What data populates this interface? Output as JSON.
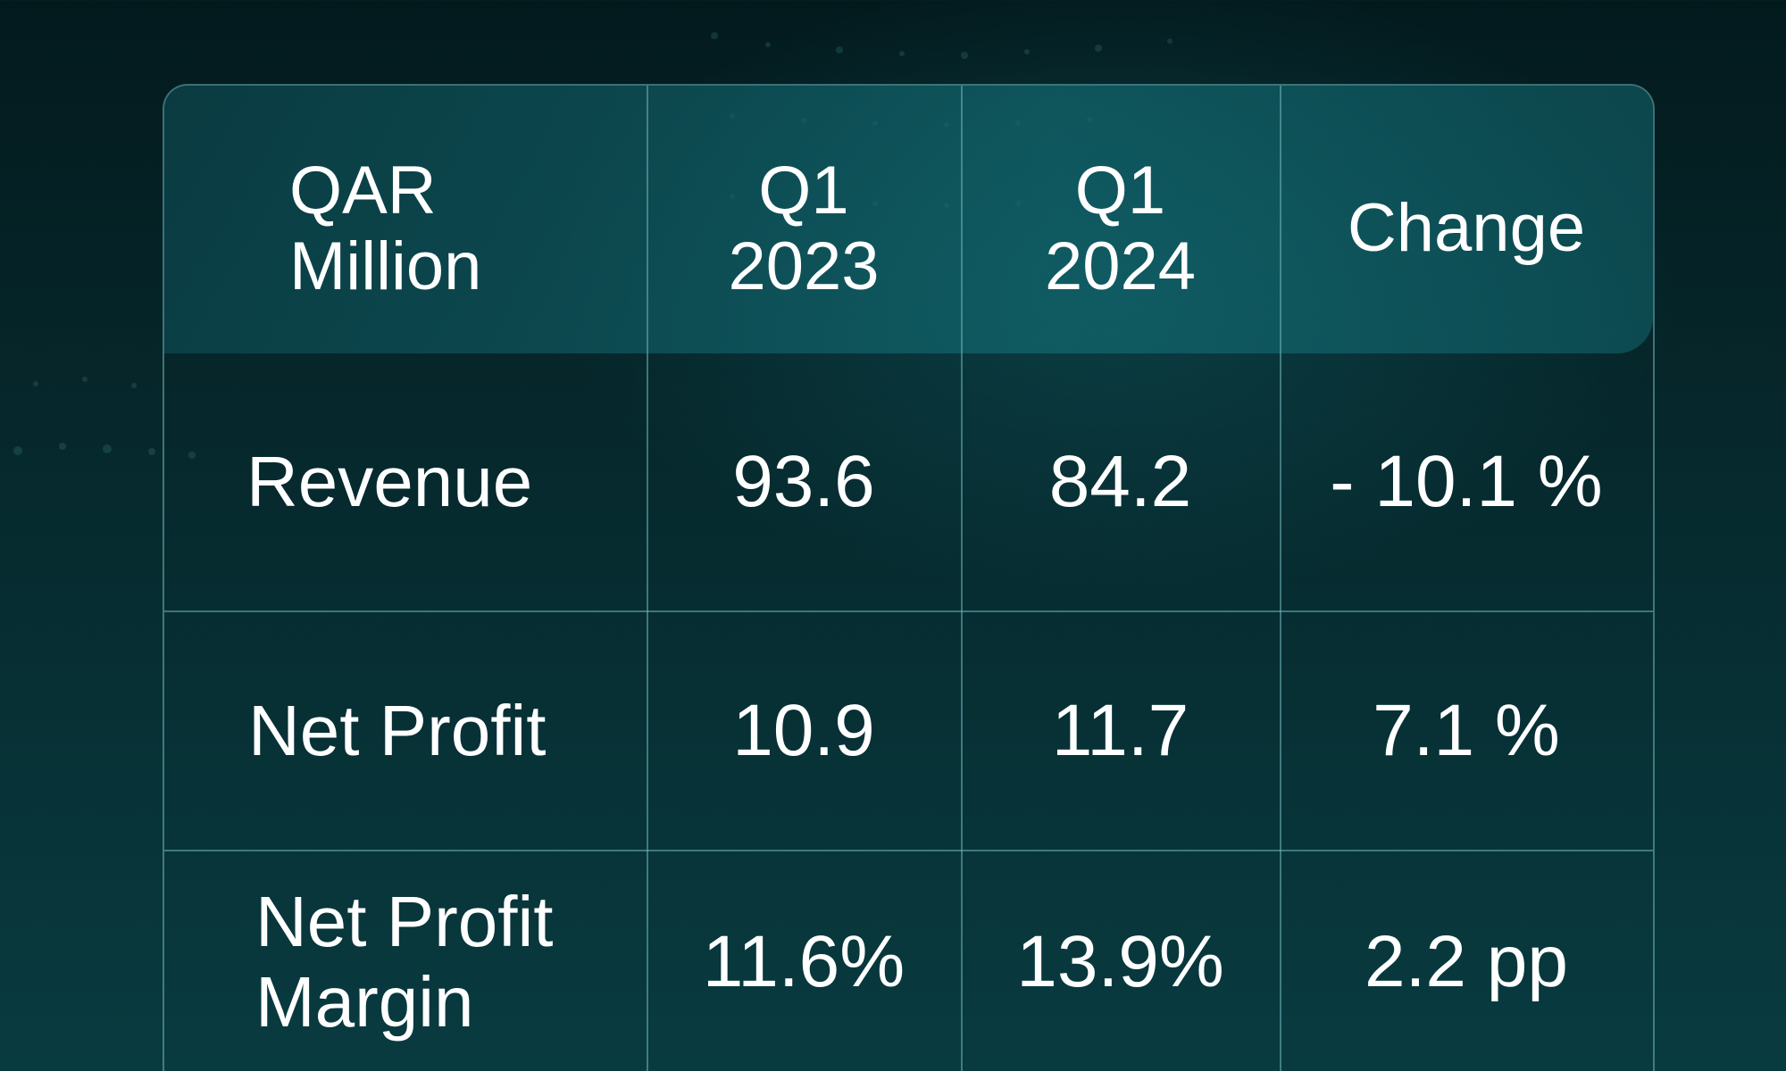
{
  "table": {
    "headers": {
      "unit_line1": "QAR",
      "unit_line2": "Million",
      "col1_line1": "Q1",
      "col1_line2": "2023",
      "col2_line1": "Q1",
      "col2_line2": "2024",
      "change": "Change"
    },
    "rows": [
      {
        "label_line1": "Revenue",
        "label_line2": "",
        "q1_2023": "93.6",
        "q1_2024": "84.2",
        "change": "- 10.1 %"
      },
      {
        "label_line1": "Net Profit",
        "label_line2": "",
        "q1_2023": "10.9",
        "q1_2024": "11.7",
        "change": "7.1 %"
      },
      {
        "label_line1": "Net Profit",
        "label_line2": "Margin",
        "q1_2023": "11.6%",
        "q1_2024": "13.9%",
        "change": "2.2 pp"
      }
    ]
  },
  "colors": {
    "background": "#06282c",
    "header_band": "#126870",
    "grid_line": "#6eb4b9",
    "text": "#ffffff"
  }
}
